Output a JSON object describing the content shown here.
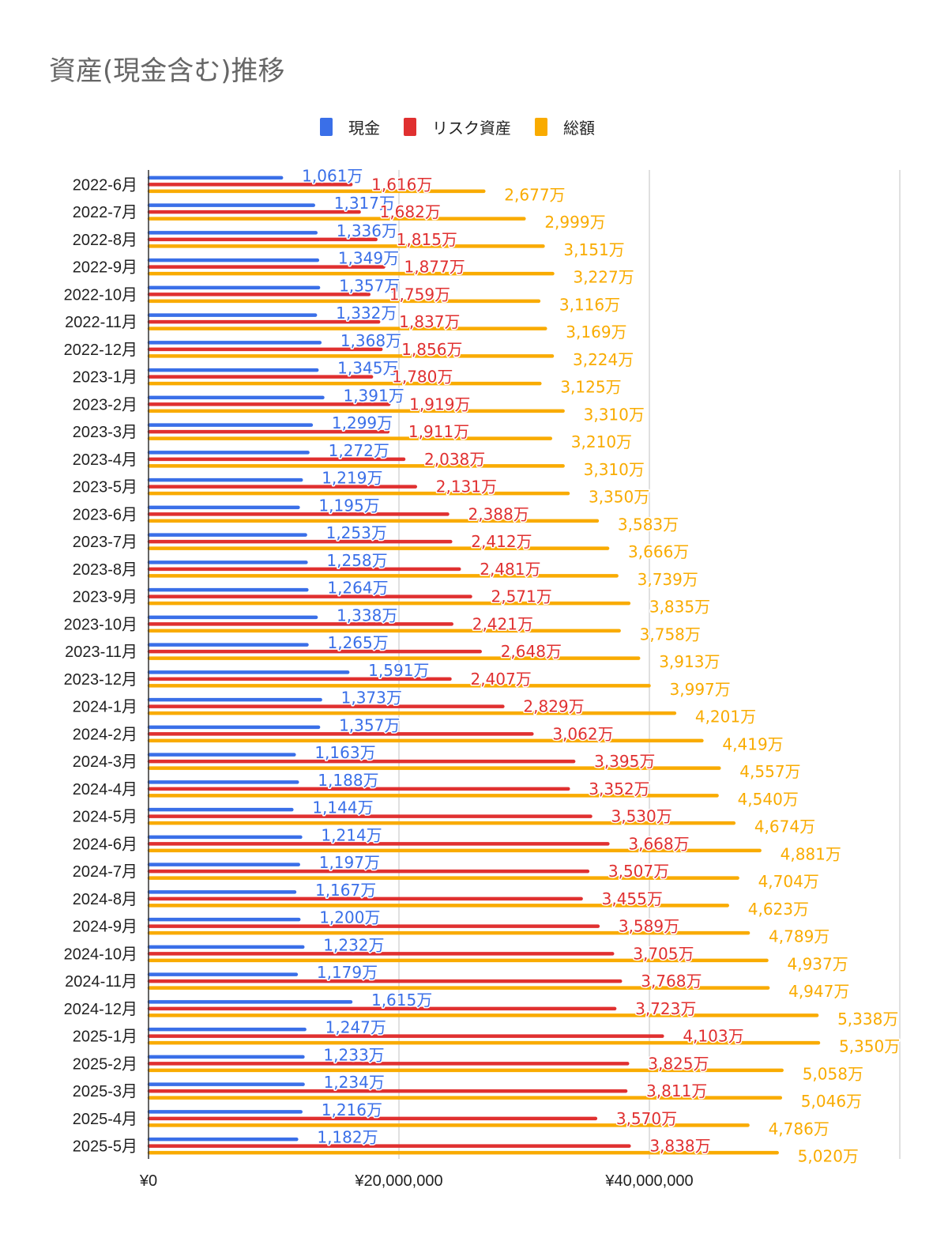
{
  "chart_data": {
    "type": "bar",
    "orientation": "horizontal",
    "title": "資産(現金含む)推移",
    "xlabel": "",
    "ylabel": "",
    "xlim": [
      0,
      60000000
    ],
    "x_ticks": [
      0,
      20000000,
      40000000,
      60000000
    ],
    "x_tick_labels": [
      "¥0",
      "¥20,000,000",
      "¥40,000,000",
      ""
    ],
    "grid": true,
    "legend_position": "top",
    "data_label_unit": "万",
    "categories": [
      "2022-6月",
      "2022-7月",
      "2022-8月",
      "2022-9月",
      "2022-10月",
      "2022-11月",
      "2022-12月",
      "2023-1月",
      "2023-2月",
      "2023-3月",
      "2023-4月",
      "2023-5月",
      "2023-6月",
      "2023-7月",
      "2023-8月",
      "2023-9月",
      "2023-10月",
      "2023-11月",
      "2023-12月",
      "2024-1月",
      "2024-2月",
      "2024-3月",
      "2024-4月",
      "2024-5月",
      "2024-6月",
      "2024-7月",
      "2024-8月",
      "2024-9月",
      "2024-10月",
      "2024-11月",
      "2024-12月",
      "2025-1月",
      "2025-2月",
      "2025-3月",
      "2025-4月",
      "2025-5月"
    ],
    "series": [
      {
        "name": "現金",
        "color": "#3a6fe8",
        "values_man": [
          1061,
          1317,
          1336,
          1349,
          1357,
          1332,
          1368,
          1345,
          1391,
          1299,
          1272,
          1219,
          1195,
          1253,
          1258,
          1264,
          1338,
          1265,
          1591,
          1373,
          1357,
          1163,
          1188,
          1144,
          1214,
          1197,
          1167,
          1200,
          1232,
          1179,
          1615,
          1247,
          1233,
          1234,
          1216,
          1182
        ],
        "labels": [
          "1,061万",
          "1,317万",
          "1,336万",
          "1,349万",
          "1,357万",
          "1,332万",
          "1,368万",
          "1,345万",
          "1,391万",
          "1,299万",
          "1,272万",
          "1,219万",
          "1,195万",
          "1,253万",
          "1,258万",
          "1,264万",
          "1,338万",
          "1,265万",
          "1,591万",
          "1,373万",
          "1,357万",
          "1,163万",
          "1,188万",
          "1,144万",
          "1,214万",
          "1,197万",
          "1,167万",
          "1,200万",
          "1,232万",
          "1,179万",
          "1,615万",
          "1,247万",
          "1,233万",
          "1,234万",
          "1,216万",
          "1,182万"
        ]
      },
      {
        "name": "リスク資産",
        "color": "#e03030",
        "values_man": [
          1616,
          1682,
          1815,
          1877,
          1759,
          1837,
          1856,
          1780,
          1919,
          1911,
          2038,
          2131,
          2388,
          2412,
          2481,
          2571,
          2421,
          2648,
          2407,
          2829,
          3062,
          3395,
          3352,
          3530,
          3668,
          3507,
          3455,
          3589,
          3705,
          3768,
          3723,
          4103,
          3825,
          3811,
          3570,
          3838
        ],
        "labels": [
          "1,616万",
          "1,682万",
          "1,815万",
          "1,877万",
          "1,759万",
          "1,837万",
          "1,856万",
          "1,780万",
          "1,919万",
          "1,911万",
          "2,038万",
          "2,131万",
          "2,388万",
          "2,412万",
          "2,481万",
          "2,571万",
          "2,421万",
          "2,648万",
          "2,407万",
          "2,829万",
          "3,062万",
          "3,395万",
          "3,352万",
          "3,530万",
          "3,668万",
          "3,507万",
          "3,455万",
          "3,589万",
          "3,705万",
          "3,768万",
          "3,723万",
          "4,103万",
          "3,825万",
          "3,811万",
          "3,570万",
          "3,838万"
        ]
      },
      {
        "name": "総額",
        "color": "#f9ab00",
        "values_man": [
          2677,
          2999,
          3151,
          3227,
          3116,
          3169,
          3224,
          3125,
          3310,
          3210,
          3310,
          3350,
          3583,
          3666,
          3739,
          3835,
          3758,
          3913,
          3997,
          4201,
          4419,
          4557,
          4540,
          4674,
          4881,
          4704,
          4623,
          4789,
          4937,
          4947,
          5338,
          5350,
          5058,
          5046,
          4786,
          5020
        ],
        "labels": [
          "2,677万",
          "2,999万",
          "3,151万",
          "3,227万",
          "3,116万",
          "3,169万",
          "3,224万",
          "3,125万",
          "3,310万",
          "3,210万",
          "3,310万",
          "3,350万",
          "3,583万",
          "3,666万",
          "3,739万",
          "3,835万",
          "3,758万",
          "3,913万",
          "3,997万",
          "4,201万",
          "4,419万",
          "4,557万",
          "4,540万",
          "4,674万",
          "4,881万",
          "4,704万",
          "4,623万",
          "4,789万",
          "4,937万",
          "4,947万",
          "5,338万",
          "5,350万",
          "5,058万",
          "5,046万",
          "4,786万",
          "5,020万"
        ]
      }
    ]
  },
  "legend": [
    {
      "label": "現金",
      "color": "#3a6fe8"
    },
    {
      "label": "リスク資産",
      "color": "#e03030"
    },
    {
      "label": "総額",
      "color": "#f9ab00"
    }
  ]
}
